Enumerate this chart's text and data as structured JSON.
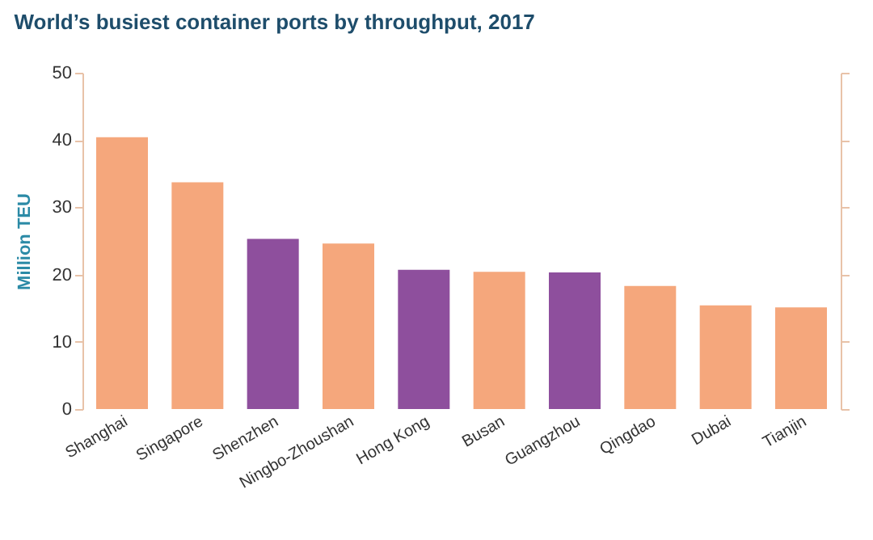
{
  "chart_data": {
    "type": "bar",
    "title": "World’s busiest container ports by throughput, 2017",
    "ylabel": "Million TEU",
    "categories": [
      "Shanghai",
      "Singapore",
      "Shenzhen",
      "Ningbo-Zhoushan",
      "Hong Kong",
      "Busan",
      "Guangzhou",
      "Qingdao",
      "Dubai",
      "Tianjin"
    ],
    "values": [
      40.4,
      33.7,
      25.3,
      24.6,
      20.7,
      20.4,
      20.3,
      18.3,
      15.4,
      15.1
    ],
    "colors": [
      "#f5a77c",
      "#f5a77c",
      "#8e4f9d",
      "#f5a77c",
      "#8e4f9d",
      "#f5a77c",
      "#8e4f9d",
      "#f5a77c",
      "#f5a77c",
      "#f5a77c"
    ],
    "ylim": [
      0,
      50
    ],
    "yticks": [
      0,
      10,
      20,
      30,
      40,
      50
    ],
    "grid": false
  }
}
